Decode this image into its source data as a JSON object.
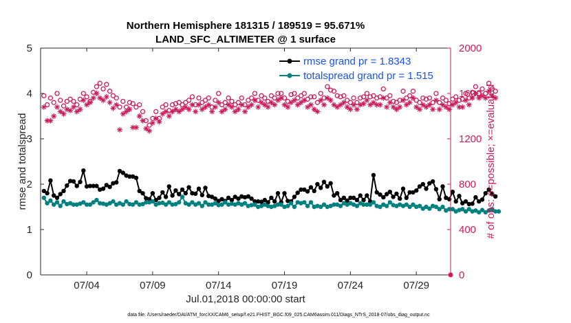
{
  "chart_data": {
    "type": "line",
    "title_line1": "Northern Hemisphere 181315 / 189519 = 95.671%",
    "title_line2": "LAND_SFC_ALTIMETER @ 1 surface",
    "xlabel": "Jul.01,2018 00:00:00 start",
    "ylabel_left": "rmse and totalspread",
    "ylabel_right": "# of obs: o=possible; ×=evaluated",
    "footer": "data file: /Users/raeder/DAI/ATM_forcXX/CAM6_setup/f.e21.FHIST_BGC.f09_025.CAM6assim.011/Diags_NTrS_2018-07/obs_diag_output.nc",
    "x_range": [
      0.5,
      31.6
    ],
    "x_ticks": [
      4,
      9,
      14,
      19,
      24,
      29
    ],
    "x_tick_labels": [
      "07/04",
      "07/09",
      "07/14",
      "07/19",
      "07/24",
      "07/29"
    ],
    "y_left_range": [
      0,
      5
    ],
    "y_left_ticks": [
      0,
      1,
      2,
      3,
      4,
      5
    ],
    "y_right_range": [
      0,
      2000
    ],
    "y_right_ticks": [
      0,
      400,
      800,
      1200,
      1600,
      2000
    ],
    "legend": [
      {
        "name": "rmse grand pr = 1.8343",
        "color": "#000000",
        "marker": "dot"
      },
      {
        "name": "totalspread grand pr = 1.515",
        "color": "#00807f",
        "marker": "dot"
      }
    ],
    "day_start": 0.75,
    "day_step": 0.25,
    "series": [
      {
        "name": "rmse",
        "axis": "left",
        "color": "#000000",
        "values": [
          1.85,
          1.8,
          2.08,
          1.75,
          1.7,
          1.78,
          1.85,
          1.97,
          2.07,
          2.06,
          1.96,
          2.05,
          2.3,
          1.95,
          1.96,
          1.96,
          1.96,
          1.88,
          1.9,
          1.98,
          1.94,
          2.02,
          2.04,
          2.29,
          2.25,
          2.19,
          2.17,
          2.17,
          2.14,
          1.85,
          1.8,
          1.69,
          1.67,
          1.8,
          1.65,
          1.7,
          1.82,
          1.72,
          1.95,
          1.75,
          1.86,
          1.78,
          1.88,
          1.8,
          1.93,
          1.8,
          1.79,
          1.9,
          1.76,
          1.92,
          1.74,
          1.72,
          1.68,
          1.63,
          1.67,
          1.63,
          1.7,
          1.65,
          1.72,
          1.68,
          1.73,
          1.71,
          1.73,
          1.68,
          1.62,
          1.62,
          1.61,
          1.65,
          1.6,
          1.7,
          1.62,
          1.8,
          1.6,
          1.8,
          1.63,
          1.62,
          1.72,
          1.81,
          1.88,
          1.88,
          1.84,
          1.93,
          1.85,
          2.0,
          1.92,
          2.05,
          1.95,
          2.02,
          1.75,
          1.8,
          1.65,
          1.7,
          1.64,
          1.7,
          1.7,
          1.65,
          1.75,
          1.65,
          1.75,
          1.62,
          2.2,
          1.82,
          1.77,
          1.71,
          1.78,
          1.83,
          1.72,
          1.79,
          1.68,
          1.9,
          1.7,
          1.82,
          1.82,
          1.86,
          1.95,
          2.0,
          1.9,
          2.02,
          2.06,
          1.89,
          1.67,
          1.95,
          1.7,
          1.67,
          1.83,
          1.62,
          1.74,
          1.58,
          1.62,
          1.56,
          1.57,
          1.71,
          1.62,
          1.66,
          1.8,
          1.88,
          1.78,
          1.73
        ]
      },
      {
        "name": "totalspread",
        "axis": "left",
        "color": "#00807f",
        "values": [
          1.7,
          1.58,
          1.64,
          1.55,
          1.6,
          1.52,
          1.62,
          1.56,
          1.58,
          1.55,
          1.55,
          1.57,
          1.6,
          1.55,
          1.55,
          1.6,
          1.65,
          1.58,
          1.57,
          1.55,
          1.58,
          1.62,
          1.55,
          1.58,
          1.55,
          1.62,
          1.56,
          1.55,
          1.6,
          1.55,
          1.56,
          1.6,
          1.6,
          1.62,
          1.55,
          1.58,
          1.59,
          1.55,
          1.6,
          1.55,
          1.56,
          1.6,
          1.72,
          1.58,
          1.55,
          1.6,
          1.55,
          1.58,
          1.52,
          1.6,
          1.55,
          1.55,
          1.58,
          1.54,
          1.55,
          1.6,
          1.55,
          1.57,
          1.55,
          1.58,
          1.55,
          1.58,
          1.52,
          1.54,
          1.55,
          1.5,
          1.52,
          1.55,
          1.52,
          1.5,
          1.52,
          1.55,
          1.55,
          1.5,
          1.52,
          1.58,
          1.5,
          1.6,
          1.58,
          1.6,
          1.52,
          1.6,
          1.5,
          1.52,
          1.5,
          1.55,
          1.5,
          1.52,
          1.55,
          1.55,
          1.52,
          1.58,
          1.55,
          1.58,
          1.55,
          1.52,
          1.58,
          1.55,
          1.55,
          1.55,
          1.6,
          1.52,
          1.5,
          1.55,
          1.52,
          1.6,
          1.54,
          1.52,
          1.55,
          1.52,
          1.55,
          1.5,
          1.55,
          1.5,
          1.52,
          1.46,
          1.5,
          1.46,
          1.52,
          1.5,
          1.45,
          1.5,
          1.42,
          1.45,
          1.45,
          1.4,
          1.43,
          1.45,
          1.4,
          1.45,
          1.4,
          1.42,
          1.38,
          1.43,
          1.38,
          1.42,
          1.45,
          1.4,
          1.4
        ]
      },
      {
        "name": "possible",
        "axis": "right",
        "color": "#cc1a5a",
        "marker": "circle",
        "values": [
          1580,
          1500,
          1560,
          1520,
          1600,
          1540,
          1490,
          1530,
          1550,
          1530,
          1500,
          1550,
          1600,
          1570,
          1530,
          1610,
          1660,
          1690,
          1640,
          1680,
          1620,
          1580,
          1560,
          1480,
          1530,
          1480,
          1520,
          1510,
          1480,
          1500,
          1440,
          1360,
          1320,
          1380,
          1440,
          1380,
          1480,
          1500,
          1450,
          1500,
          1510,
          1520,
          1500,
          1520,
          1540,
          1570,
          1500,
          1560,
          1520,
          1540,
          1560,
          1480,
          1540,
          1600,
          1500,
          1520,
          1560,
          1530,
          1500,
          1520,
          1560,
          1500,
          1540,
          1560,
          1600,
          1540,
          1580,
          1560,
          1530,
          1580,
          1560,
          1600,
          1600,
          1560,
          1530,
          1590,
          1600,
          1560,
          1580,
          1600,
          1550,
          1570,
          1570,
          1520,
          1600,
          1560,
          1660,
          1630,
          1620,
          1580,
          1570,
          1580,
          1540,
          1520,
          1560,
          1520,
          1560,
          1570,
          1600,
          1570,
          1580,
          1560,
          1570,
          1640,
          1560,
          1580,
          1530,
          1520,
          1540,
          1620,
          1560,
          1580,
          1620,
          1540,
          1520,
          1560,
          1550,
          1560,
          1520,
          1600,
          1520,
          1560,
          1540,
          1510,
          1550,
          1570,
          1540,
          1550,
          1600,
          1560,
          1610,
          1660,
          1600,
          1640,
          1600,
          1690,
          1640,
          1620
        ]
      },
      {
        "name": "evaluated",
        "axis": "right",
        "color": "#cc1a5a",
        "marker": "star",
        "values": [
          1480,
          1360,
          1360,
          1400,
          1480,
          1440,
          1420,
          1460,
          1450,
          1480,
          1440,
          1460,
          1540,
          1500,
          1520,
          1560,
          1600,
          1560,
          1540,
          1570,
          1520,
          1470,
          1500,
          1280,
          1420,
          1440,
          1460,
          1300,
          1300,
          1400,
          1360,
          1290,
          1270,
          1340,
          1380,
          1350,
          1420,
          1440,
          1400,
          1440,
          1460,
          1440,
          1460,
          1480,
          1460,
          1500,
          1440,
          1500,
          1460,
          1480,
          1500,
          1440,
          1480,
          1520,
          1440,
          1460,
          1500,
          1480,
          1440,
          1460,
          1500,
          1440,
          1480,
          1500,
          1540,
          1480,
          1520,
          1500,
          1480,
          1520,
          1500,
          1540,
          1560,
          1500,
          1480,
          1520,
          1540,
          1500,
          1520,
          1540,
          1480,
          1500,
          1460,
          1440,
          1540,
          1500,
          1560,
          1540,
          1500,
          1480,
          1500,
          1520,
          1480,
          1460,
          1500,
          1460,
          1500,
          1510,
          1540,
          1500,
          1520,
          1500,
          1500,
          1560,
          1480,
          1520,
          1480,
          1460,
          1480,
          1540,
          1500,
          1520,
          1560,
          1480,
          1460,
          1500,
          1480,
          1500,
          1460,
          1540,
          1460,
          1500,
          1480,
          1460,
          1500,
          1520,
          1480,
          1480,
          1540,
          1500,
          1560,
          1600,
          1560,
          1580,
          1560,
          1620,
          1580,
          1560
        ]
      }
    ]
  }
}
